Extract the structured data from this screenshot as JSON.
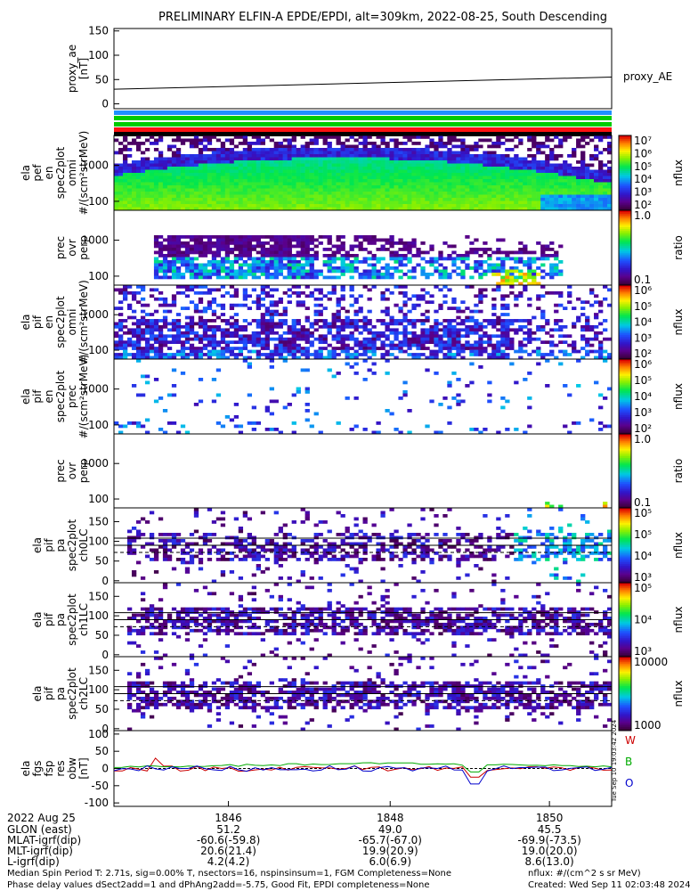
{
  "title": "PRELIMINARY ELFIN-A EPDE/EPDI, alt=309km, 2022-08-25, South Descending",
  "side_stamp": "Tue Sep 10 19:03:42 2024",
  "chart_data": [
    {
      "type": "line",
      "name": "proxy_ae",
      "ylabel": [
        "proxy_ae",
        "[nT]"
      ],
      "ylim": [
        -10,
        155
      ],
      "yticks": [
        "150",
        "100",
        "50",
        "0"
      ],
      "ytick_values": [
        150,
        100,
        50,
        0
      ],
      "legend": "proxy_AE",
      "x": [
        0,
        1
      ],
      "y": [
        30,
        55
      ]
    },
    {
      "type": "bars",
      "name": "status-bars",
      "colors": [
        "#1e90ff",
        "#00cc00",
        "#00cc00",
        "#ff1111",
        "#000000"
      ]
    },
    {
      "type": "heatmap",
      "name": "elx-pef-en-omni",
      "ylabel": [
        "ela",
        "pef",
        "en",
        "spec2plot",
        "omni",
        "#/(scm²strMeV)"
      ],
      "yticks": [
        "1000",
        "100"
      ],
      "colorbar": {
        "label": "nflux",
        "ticks": [
          "10⁷",
          "10⁶",
          "10⁵",
          "10⁴",
          "10³",
          "10²"
        ]
      }
    },
    {
      "type": "heatmap",
      "name": "elx-pef-en-prec-ovr-perp",
      "ylabel": [
        "prec",
        "ovr",
        "perp"
      ],
      "yticks": [
        "1000",
        "100"
      ],
      "colorbar": {
        "label": "ratio",
        "ticks": [
          "1.0",
          "0.1"
        ]
      }
    },
    {
      "type": "heatmap",
      "name": "elx-pif-en-omni",
      "ylabel": [
        "ela",
        "pif",
        "en",
        "spec2plot",
        "omni",
        "#/(scm²strMeV)"
      ],
      "yticks": [
        "1000",
        "100"
      ],
      "colorbar": {
        "label": "nflux",
        "ticks": [
          "10⁶",
          "10⁵",
          "10⁴",
          "10³",
          "10²"
        ]
      }
    },
    {
      "type": "heatmap",
      "name": "elx-pif-en-prec",
      "ylabel": [
        "ela",
        "pif",
        "en",
        "spec2plot",
        "prec",
        "#/(scm²strMeV)"
      ],
      "yticks": [
        "1000",
        "100"
      ],
      "colorbar": {
        "label": "nflux",
        "ticks": [
          "10⁶",
          "10⁵",
          "10⁴",
          "10³",
          "10²"
        ]
      }
    },
    {
      "type": "heatmap",
      "name": "elx-pif-en-prec-ovr-perp",
      "ylabel": [
        "prec",
        "ovr",
        "perp"
      ],
      "yticks": [
        "1000",
        "100"
      ],
      "colorbar": {
        "label": "ratio",
        "ticks": [
          "1.0",
          "0.1"
        ]
      }
    },
    {
      "type": "heatmap",
      "name": "elx-pif-pa-ch0LC",
      "ylabel": [
        "ela",
        "pif",
        "pa",
        "spec2plot",
        "ch0LC"
      ],
      "yticks": [
        "150",
        "100",
        "50",
        "0"
      ],
      "colorbar": {
        "label": "nflux",
        "ticks": [
          "10⁵",
          "10⁵",
          "10⁴",
          "10³"
        ]
      }
    },
    {
      "type": "heatmap",
      "name": "elx-pif-pa-ch1LC",
      "ylabel": [
        "ela",
        "pif",
        "pa",
        "spec2plot",
        "ch1LC"
      ],
      "yticks": [
        "150",
        "100",
        "50",
        "0"
      ],
      "colorbar": {
        "label": "nflux",
        "ticks": [
          "10⁵",
          "10⁴",
          "10³"
        ]
      }
    },
    {
      "type": "heatmap",
      "name": "elx-pif-pa-ch2LC",
      "ylabel": [
        "ela",
        "pif",
        "pa",
        "spec2plot",
        "ch2LC"
      ],
      "yticks": [
        "150",
        "100",
        "50",
        "0"
      ],
      "colorbar": {
        "label": "nflux",
        "ticks": [
          "10000",
          "1000"
        ]
      }
    },
    {
      "type": "line",
      "name": "elx-fgs-fsp-res-obw",
      "ylabel": [
        "ela",
        "fgs",
        "fsp",
        "res",
        "obw",
        "[nT]"
      ],
      "ylim": [
        -110,
        110
      ],
      "yticks": [
        "100",
        "50",
        "0",
        "-50",
        "-100"
      ],
      "ytick_values": [
        100,
        50,
        0,
        -50,
        -100
      ],
      "legend": [
        {
          "label": "W",
          "color": "#cc0000"
        },
        {
          "label": "B",
          "color": "#00aa00"
        },
        {
          "label": "O",
          "color": "#0000cc"
        }
      ]
    }
  ],
  "xaxis": {
    "ticks": [
      "1846",
      "1848",
      "1850"
    ],
    "date_label": "2022 Aug 25",
    "rows": [
      {
        "label": "GLON (east)",
        "values": [
          "51.2",
          "49.0",
          "45.5"
        ]
      },
      {
        "label": "MLAT-igrf(dip)",
        "values": [
          "-60.6(-59.8)",
          "-65.7(-67.0)",
          "-69.9(-73.5)"
        ]
      },
      {
        "label": "MLT-igrf(dip)",
        "values": [
          "20.6(21.4)",
          "19.9(20.9)",
          "19.0(20.0)"
        ]
      },
      {
        "label": "L-igrf(dip)",
        "values": [
          "4.2(4.2)",
          "6.0(6.9)",
          "8.6(13.0)"
        ]
      }
    ]
  },
  "footer": {
    "line1_left": "Median Spin Period T: 2.71s, sig=0.00% T, nsectors=16, nspinsinsum=1, FGM Completeness=None",
    "line1_right": "nflux: #/(cm^2 s sr MeV)",
    "line2_left": "Phase delay values dSect2add=1 and dPhAng2add=-5.75, Good Fit, EPDI completeness=None",
    "line2_right": "Created: Wed Sep 11 02:03:48 2024"
  }
}
